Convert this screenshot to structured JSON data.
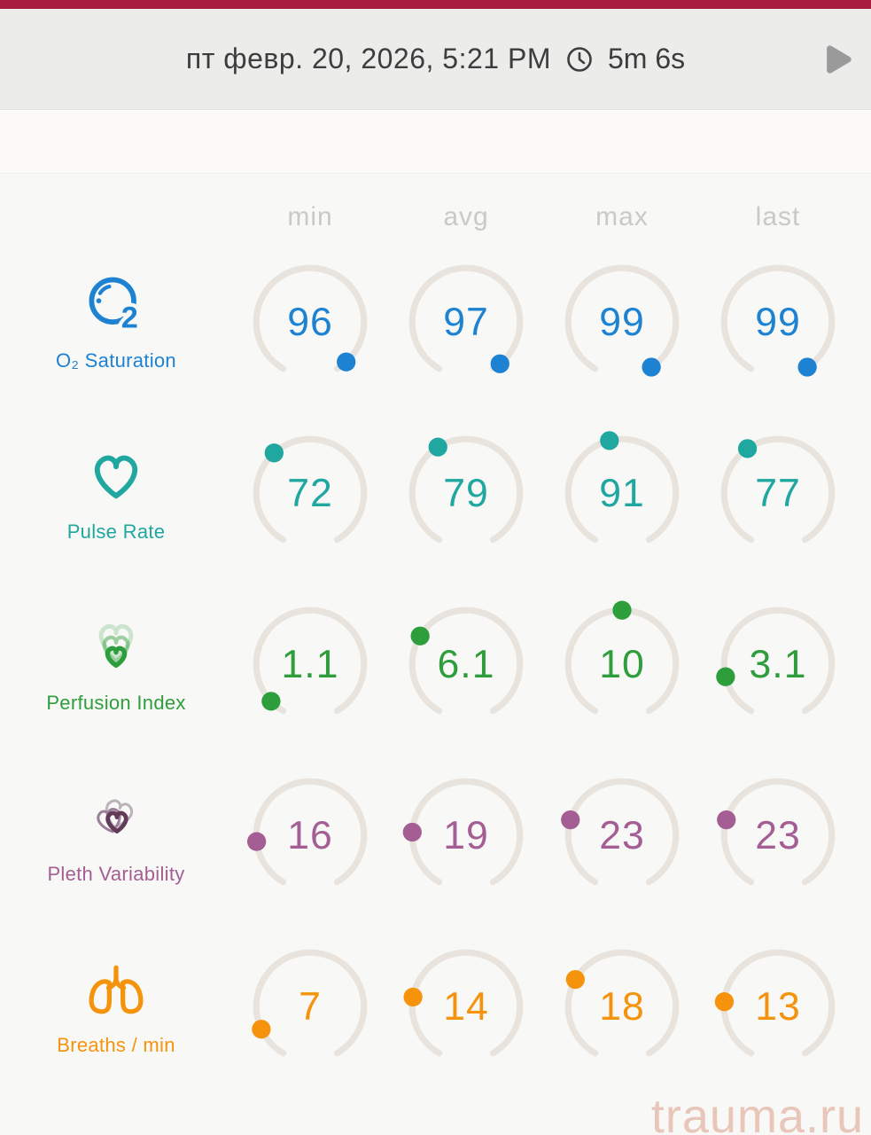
{
  "header": {
    "date": "пт февр. 20, 2026, 5:21 PM",
    "duration": "5m 6s"
  },
  "columns": [
    "min",
    "avg",
    "max",
    "last"
  ],
  "rows": [
    {
      "label": "O₂ Saturation",
      "icon": "o2-bubble-icon",
      "color": "#1d82d2",
      "gauge_range": [
        0,
        100
      ],
      "values": {
        "min": "96",
        "avg": "97",
        "max": "99",
        "last": "99"
      }
    },
    {
      "label": "Pulse Rate",
      "icon": "heart-icon",
      "color": "#1fa7a0",
      "gauge_range": [
        0,
        200
      ],
      "values": {
        "min": "72",
        "avg": "79",
        "max": "91",
        "last": "77"
      }
    },
    {
      "label": "Perfusion Index",
      "icon": "layered-hearts-icon",
      "color": "#2e9e3c",
      "gauge_range": [
        0,
        20
      ],
      "values": {
        "min": "1.1",
        "avg": "6.1",
        "max": "10",
        "last": "3.1"
      }
    },
    {
      "label": "Pleth Variability",
      "icon": "linked-hearts-icon",
      "color": "#a45e94",
      "gauge_range": [
        0,
        90
      ],
      "values": {
        "min": "16",
        "avg": "19",
        "max": "23",
        "last": "23"
      }
    },
    {
      "label": "Breaths / min",
      "icon": "lungs-icon",
      "color": "#f5940c",
      "gauge_range": [
        0,
        60
      ],
      "values": {
        "min": "7",
        "avg": "14",
        "max": "18",
        "last": "13"
      }
    }
  ],
  "watermark": "trauma.ru",
  "colors": {
    "topbar": "#ab1d40",
    "header_bg": "#ececeb",
    "strip_bg": "#fbfaf9",
    "stats_bg": "#f8f8f7",
    "gauge_track": "#e8e4dd",
    "column_header_text": "#cbc9c6",
    "header_text": "#3d3d3d",
    "play_icon": "#9a9a9a",
    "watermark_text": "#e8c6b9"
  }
}
